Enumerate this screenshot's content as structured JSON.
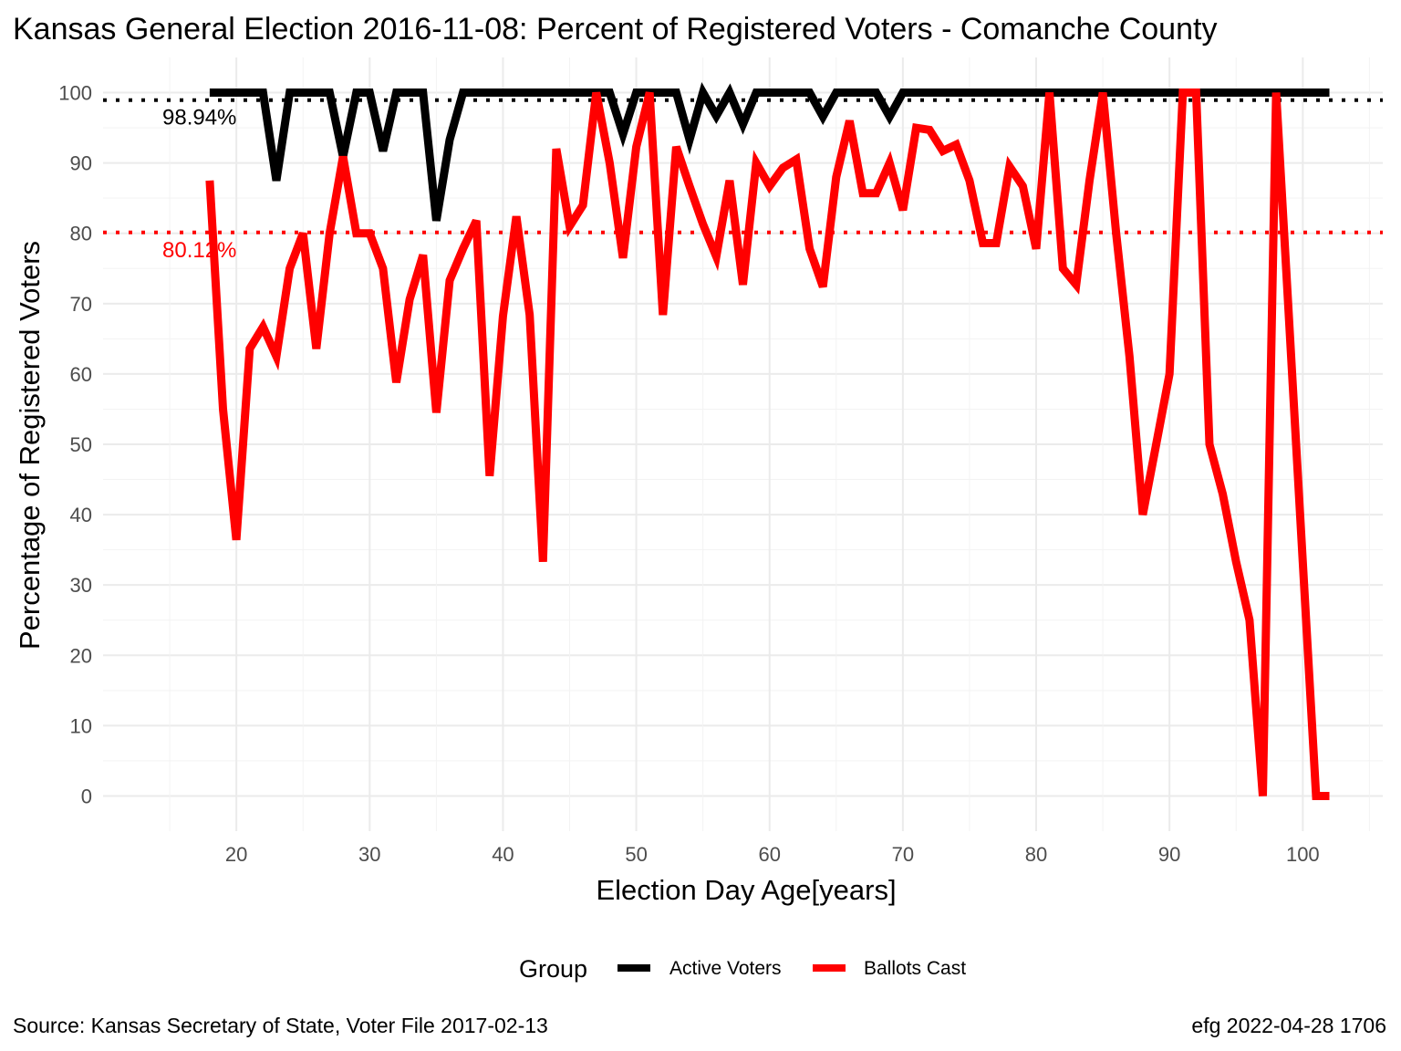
{
  "chart_data": {
    "type": "line",
    "title": "Kansas General Election 2016-11-08:  Percent of Registered Voters - Comanche County",
    "xlabel": "Election Day Age[years]",
    "ylabel": "Percentage of Registered Voters",
    "xlim": [
      10,
      106
    ],
    "ylim": [
      -5,
      105
    ],
    "x_ticks": [
      20,
      30,
      40,
      50,
      60,
      70,
      80,
      90,
      100
    ],
    "y_ticks": [
      0,
      10,
      20,
      30,
      40,
      50,
      60,
      70,
      80,
      90,
      100
    ],
    "grid": true,
    "legend": {
      "title": "Group",
      "position": "bottom",
      "entries": [
        {
          "label": "Active Voters",
          "color": "#000000"
        },
        {
          "label": "Ballots Cast",
          "color": "#ff0000"
        }
      ]
    },
    "series": [
      {
        "name": "Active Voters",
        "color": "#000000",
        "x": [
          18,
          19,
          20,
          21,
          22,
          23,
          24,
          25,
          26,
          27,
          28,
          29,
          30,
          31,
          32,
          33,
          34,
          35,
          36,
          37,
          38,
          39,
          40,
          41,
          42,
          43,
          44,
          45,
          46,
          47,
          48,
          49,
          50,
          51,
          52,
          53,
          54,
          55,
          56,
          57,
          58,
          59,
          60,
          61,
          62,
          63,
          64,
          65,
          66,
          67,
          68,
          69,
          70,
          71,
          72,
          73,
          74,
          75,
          76,
          77,
          78,
          79,
          80,
          81,
          82,
          83,
          84,
          85,
          86,
          87,
          88,
          89,
          90,
          91,
          92,
          93,
          94,
          95,
          96,
          97,
          98,
          99,
          100,
          101,
          102
        ],
        "values": [
          100,
          100,
          100,
          100,
          100,
          87.5,
          100,
          100,
          100,
          100,
          90.9,
          100,
          100,
          91.7,
          100,
          100,
          100,
          81.8,
          93.3,
          100,
          100,
          100,
          100,
          100,
          100,
          100,
          100,
          100,
          100,
          100,
          100,
          94.1,
          100,
          100,
          100,
          100,
          93.3,
          100,
          96.7,
          100,
          95.5,
          100,
          100,
          100,
          100,
          100,
          96.6,
          100,
          100,
          100,
          100,
          96.6,
          100,
          100,
          100,
          100,
          100,
          100,
          100,
          100,
          100,
          100,
          100,
          100,
          100,
          100,
          100,
          100,
          100,
          100,
          100,
          100,
          100,
          100,
          100,
          100,
          100,
          100,
          100,
          100,
          100,
          100,
          100,
          100,
          100
        ]
      },
      {
        "name": "Ballots Cast",
        "color": "#ff0000",
        "x": [
          18,
          19,
          20,
          21,
          22,
          23,
          24,
          25,
          26,
          27,
          28,
          29,
          30,
          31,
          32,
          33,
          34,
          35,
          36,
          37,
          38,
          39,
          40,
          41,
          42,
          43,
          44,
          45,
          46,
          47,
          48,
          49,
          50,
          51,
          52,
          53,
          54,
          55,
          56,
          57,
          58,
          59,
          60,
          61,
          62,
          63,
          64,
          65,
          66,
          67,
          68,
          69,
          70,
          71,
          72,
          73,
          74,
          75,
          76,
          77,
          78,
          79,
          80,
          81,
          82,
          83,
          84,
          85,
          86,
          87,
          88,
          89,
          90,
          91,
          92,
          93,
          94,
          95,
          96,
          97,
          98,
          99,
          100,
          101,
          102
        ],
        "values": [
          87.5,
          55,
          36.4,
          63.6,
          66.7,
          62.5,
          75,
          80,
          63.6,
          80,
          90.9,
          80,
          80,
          75,
          58.8,
          70.6,
          76.9,
          54.5,
          73.3,
          77.8,
          81.8,
          45.5,
          68.2,
          82.4,
          68.4,
          33.3,
          92,
          81,
          84,
          100,
          90,
          76.5,
          92.3,
          100,
          68.4,
          92.3,
          86.7,
          81.3,
          76.7,
          87.5,
          72.7,
          90,
          86.7,
          89.3,
          90.5,
          77.8,
          72.4,
          88,
          96,
          85.7,
          85.7,
          90,
          83.3,
          95,
          94.7,
          91.7,
          92.6,
          87.5,
          78.6,
          78.6,
          89.5,
          86.7,
          77.8,
          100,
          75,
          72.7,
          87.5,
          100,
          80,
          62.5,
          40,
          50,
          60,
          100,
          100,
          50,
          42.9,
          33.3,
          25,
          0,
          100,
          66.7,
          33.3,
          0,
          0
        ]
      }
    ],
    "reference_lines": [
      {
        "value": 98.94,
        "label": "98.94%",
        "color": "#000000"
      },
      {
        "value": 80.12,
        "label": "80.12%",
        "color": "#ff0000"
      }
    ]
  },
  "caption": {
    "source": "Source:  Kansas Secretary of State, Voter File  2017-02-13",
    "credit": "efg 2022-04-28 1706"
  }
}
